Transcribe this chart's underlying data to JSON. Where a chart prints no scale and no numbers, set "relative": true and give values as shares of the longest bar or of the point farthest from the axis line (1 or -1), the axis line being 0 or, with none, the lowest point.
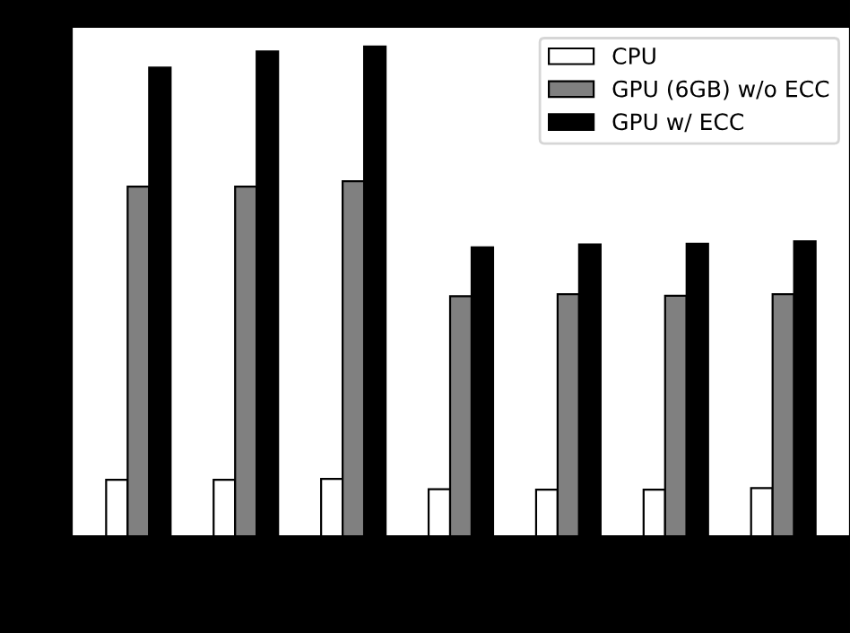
{
  "chart_data": {
    "type": "bar",
    "relative": true,
    "categories": [
      null,
      null,
      null,
      null,
      null,
      null,
      null
    ],
    "series": [
      {
        "name": "CPU",
        "color": "#ffffff",
        "values": [
          0.115,
          0.115,
          0.117,
          0.096,
          0.095,
          0.095,
          0.098
        ]
      },
      {
        "name": "GPU (6GB) w/o ECC",
        "color": "#808080",
        "values": [
          0.714,
          0.714,
          0.725,
          0.49,
          0.494,
          0.491,
          0.494
        ]
      },
      {
        "name": "GPU w/ ECC",
        "color": "#000000",
        "values": [
          0.957,
          0.99,
          1,
          0.59,
          0.596,
          0.597,
          0.602
        ]
      }
    ],
    "legend": "top right",
    "grid": false
  }
}
